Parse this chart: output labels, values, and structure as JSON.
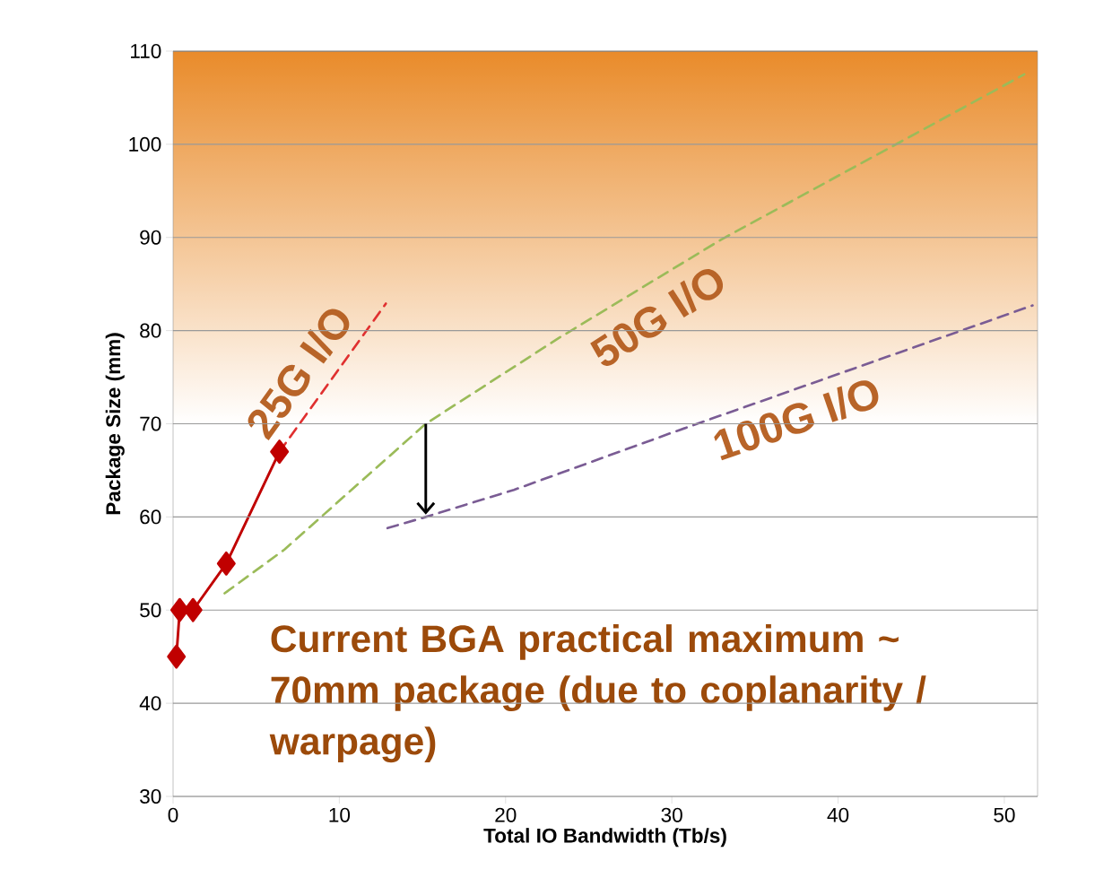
{
  "chart_data": {
    "type": "line",
    "xlabel": "Total IO Bandwidth (Tb/s)",
    "ylabel": "Package Size (mm)",
    "xlim": [
      0,
      52
    ],
    "ylim": [
      30,
      110
    ],
    "xticks": [
      0,
      10,
      20,
      30,
      40,
      50
    ],
    "yticks": [
      30,
      40,
      50,
      60,
      70,
      80,
      90,
      100,
      110
    ],
    "grid": "y",
    "series": [
      {
        "color": "#c00000",
        "marker": "diamond",
        "line_style": "solid",
        "x": [
          0.2,
          0.4,
          1.2,
          3.2,
          6.4
        ],
        "values": [
          45,
          50,
          50,
          55,
          67
        ]
      },
      {
        "name": "25G I/O",
        "color": "#e03030",
        "line_style": "dashed",
        "marker": "none",
        "x": [
          6.4,
          12.8
        ],
        "values": [
          67,
          82.9
        ]
      },
      {
        "name": "50G I/O",
        "color": "#9bbb59",
        "line_style": "dashed",
        "marker": "none",
        "x": [
          3.1,
          6.7,
          15.2,
          23.2,
          33,
          51.2
        ],
        "values": [
          51.8,
          56.5,
          70,
          79.2,
          89.8,
          107.5
        ]
      },
      {
        "name": "100G I/O",
        "color": "#7a5c94",
        "line_style": "dashed",
        "marker": "none",
        "x": [
          12.9,
          15.2,
          20.5,
          30.1,
          51.7
        ],
        "values": [
          58.8,
          60,
          62.9,
          69.1,
          82.7
        ]
      }
    ],
    "bands": [
      {
        "axis": "y",
        "from": 70,
        "to": 110,
        "color": "#e98b2a"
      }
    ],
    "annotations": [
      "Current BGA practical maximum ~ 70mm package (due to coplanarity / warpage)"
    ]
  }
}
